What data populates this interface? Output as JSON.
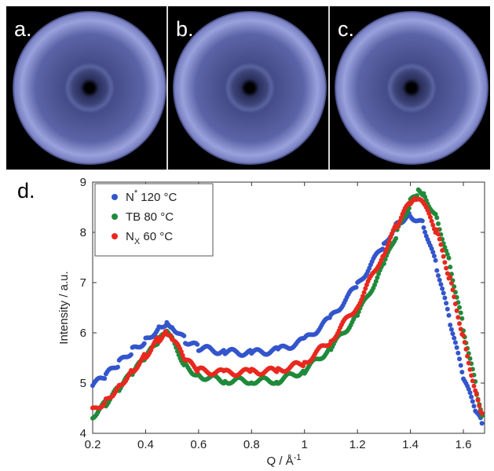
{
  "panels": [
    {
      "label": "a."
    },
    {
      "label": "b."
    },
    {
      "label": "c."
    }
  ],
  "plot_label": "d.",
  "colors": {
    "series_blue": "#3355cc",
    "series_green": "#1f8a3a",
    "series_red": "#e8281e",
    "diffraction_ring": "#8e96d8"
  },
  "chart_data": {
    "type": "scatter",
    "title": "",
    "xlabel": "Q / Å",
    "xlabel_superscript": "-1",
    "ylabel": "Intensity / a.u.",
    "xlim": [
      0.2,
      1.68
    ],
    "ylim": [
      4,
      9
    ],
    "xticks": [
      "0.2",
      "0.4",
      "0.6",
      "0.8",
      "1",
      "1.2",
      "1.4",
      "1.6"
    ],
    "yticks": [
      "4",
      "5",
      "6",
      "7",
      "8",
      "9"
    ],
    "legend_position": "top-left",
    "series": [
      {
        "name": "N* 120 °C",
        "legend_main": "N",
        "legend_sup": "*",
        "legend_sub": "",
        "legend_rest": " 120 °C",
        "color_key": "series_blue",
        "x": [
          0.2,
          0.25,
          0.3,
          0.35,
          0.4,
          0.45,
          0.48,
          0.5,
          0.55,
          0.6,
          0.7,
          0.8,
          0.9,
          1.0,
          1.1,
          1.2,
          1.3,
          1.35,
          1.4,
          1.45,
          1.5,
          1.55,
          1.6,
          1.65,
          1.67
        ],
        "y": [
          4.95,
          5.15,
          5.4,
          5.65,
          5.85,
          6.1,
          6.22,
          6.15,
          5.85,
          5.7,
          5.62,
          5.6,
          5.65,
          5.85,
          6.3,
          6.95,
          7.75,
          8.2,
          8.35,
          8.15,
          7.3,
          6.2,
          5.1,
          4.4,
          4.2
        ]
      },
      {
        "name": "TB 80 °C",
        "legend_main": "TB",
        "legend_sup": "",
        "legend_sub": "",
        "legend_rest": " 80 °C",
        "color_key": "series_green",
        "x": [
          0.2,
          0.25,
          0.3,
          0.35,
          0.4,
          0.45,
          0.48,
          0.5,
          0.55,
          0.6,
          0.7,
          0.8,
          0.9,
          1.0,
          1.1,
          1.2,
          1.3,
          1.35,
          1.4,
          1.43,
          1.45,
          1.5,
          1.55,
          1.6,
          1.65,
          1.67
        ],
        "y": [
          4.35,
          4.6,
          4.9,
          5.2,
          5.5,
          5.85,
          5.98,
          5.85,
          5.35,
          5.15,
          5.05,
          5.05,
          5.05,
          5.25,
          5.7,
          6.35,
          7.35,
          8.0,
          8.6,
          8.8,
          8.75,
          8.3,
          7.35,
          6.1,
          4.85,
          4.35
        ]
      },
      {
        "name": "NX 60 °C",
        "legend_main": "N",
        "legend_sup": "",
        "legend_sub": "X",
        "legend_rest": " 60 °C",
        "color_key": "series_red",
        "x": [
          0.2,
          0.25,
          0.3,
          0.35,
          0.4,
          0.45,
          0.48,
          0.5,
          0.55,
          0.6,
          0.7,
          0.8,
          0.9,
          1.0,
          1.1,
          1.2,
          1.3,
          1.35,
          1.4,
          1.42,
          1.45,
          1.5,
          1.55,
          1.6,
          1.65,
          1.67
        ],
        "y": [
          4.45,
          4.65,
          4.95,
          5.25,
          5.55,
          5.88,
          6.02,
          5.9,
          5.45,
          5.25,
          5.2,
          5.22,
          5.25,
          5.4,
          5.85,
          6.55,
          7.6,
          8.15,
          8.6,
          8.65,
          8.55,
          8.0,
          7.05,
          5.9,
          4.75,
          4.4
        ]
      }
    ]
  }
}
